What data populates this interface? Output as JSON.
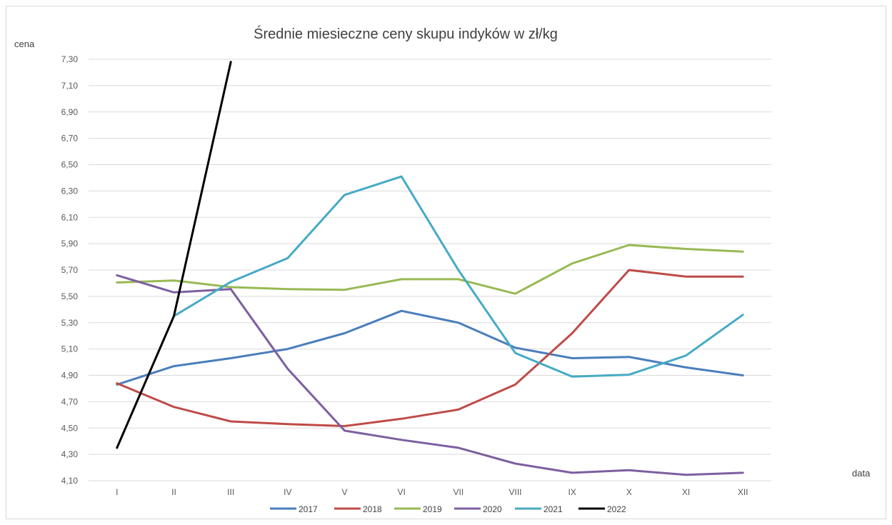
{
  "chart_data": {
    "type": "line",
    "title": "Średnie miesieczne ceny skupu indyków w zł/kg",
    "xlabel": "data",
    "ylabel": "cena",
    "categories": [
      "I",
      "II",
      "III",
      "IV",
      "V",
      "VI",
      "VII",
      "VIII",
      "IX",
      "X",
      "XI",
      "XII"
    ],
    "yticks": [
      "4,10",
      "4,30",
      "4,50",
      "4,70",
      "4,90",
      "5,10",
      "5,30",
      "5,50",
      "5,70",
      "5,90",
      "6,10",
      "6,30",
      "6,50",
      "6,70",
      "6,90",
      "7,10",
      "7,30"
    ],
    "ylim": [
      4.1,
      7.3
    ],
    "grid": true,
    "legend_position": "bottom",
    "series": [
      {
        "name": "2017",
        "color": "#4a7ebb",
        "values": [
          4.83,
          4.97,
          5.03,
          5.1,
          5.22,
          5.39,
          5.3,
          5.11,
          5.03,
          5.04,
          4.96,
          4.9
        ]
      },
      {
        "name": "2018",
        "color": "#be4b48",
        "values": [
          4.84,
          4.66,
          4.55,
          4.53,
          4.515,
          4.57,
          4.64,
          4.83,
          5.22,
          5.7,
          5.65,
          5.65
        ]
      },
      {
        "name": "2019",
        "color": "#98b954",
        "values": [
          5.605,
          5.62,
          5.57,
          5.555,
          5.55,
          5.63,
          5.63,
          5.52,
          5.75,
          5.89,
          5.86,
          5.84
        ]
      },
      {
        "name": "2020",
        "color": "#7d5fa0",
        "values": [
          5.66,
          5.53,
          5.555,
          4.95,
          4.48,
          4.41,
          4.35,
          4.23,
          4.16,
          4.18,
          4.145,
          4.16
        ]
      },
      {
        "name": "2021",
        "color": "#46aac5",
        "values": [
          null,
          5.35,
          5.61,
          5.79,
          6.27,
          6.41,
          5.7,
          5.07,
          4.89,
          4.905,
          5.05,
          5.36
        ]
      },
      {
        "name": "2022",
        "color": "#000000",
        "values": [
          4.35,
          5.35,
          7.28,
          null,
          null,
          null,
          null,
          null,
          null,
          null,
          null,
          null
        ]
      }
    ]
  }
}
